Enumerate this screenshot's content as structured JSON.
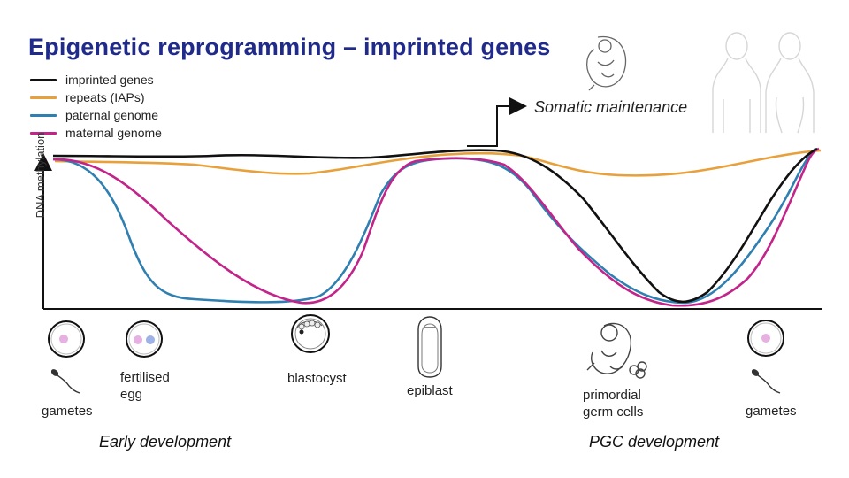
{
  "title": "Epigenetic reprogramming – imprinted genes",
  "annotation": "Somatic maintenance",
  "yaxis_label": "DNA methylation",
  "legend": [
    {
      "label": "imprinted genes",
      "color": "#111111"
    },
    {
      "label": "repeats (IAPs)",
      "color": "#e8a03a"
    },
    {
      "label": "paternal genome",
      "color": "#2f7fb0"
    },
    {
      "label": "maternal genome",
      "color": "#c2248a"
    }
  ],
  "stages": {
    "gametes_left": "gametes",
    "fertilised_egg": [
      "fertilised",
      "egg"
    ],
    "blastocyst": "blastocyst",
    "epiblast": "epiblast",
    "pgc": [
      "primordial",
      "germ cells"
    ],
    "gametes_right": "gametes"
  },
  "phases": {
    "early": "Early development",
    "pgc": "PGC development"
  },
  "colors": {
    "title": "#1f2a8a",
    "imprinted": "#111111",
    "repeats": "#e8a03a",
    "paternal": "#2f7fb0",
    "maternal": "#c2248a",
    "egg_nucleus_maternal": "#e6b0e0",
    "egg_nucleus_paternal": "#9fb2e6"
  },
  "icons": [
    "egg-cell-icon",
    "zygote-icon",
    "blastocyst-icon",
    "epiblast-icon",
    "embryo-icon",
    "sperm-icon",
    "human-silhouette-icon"
  ]
}
